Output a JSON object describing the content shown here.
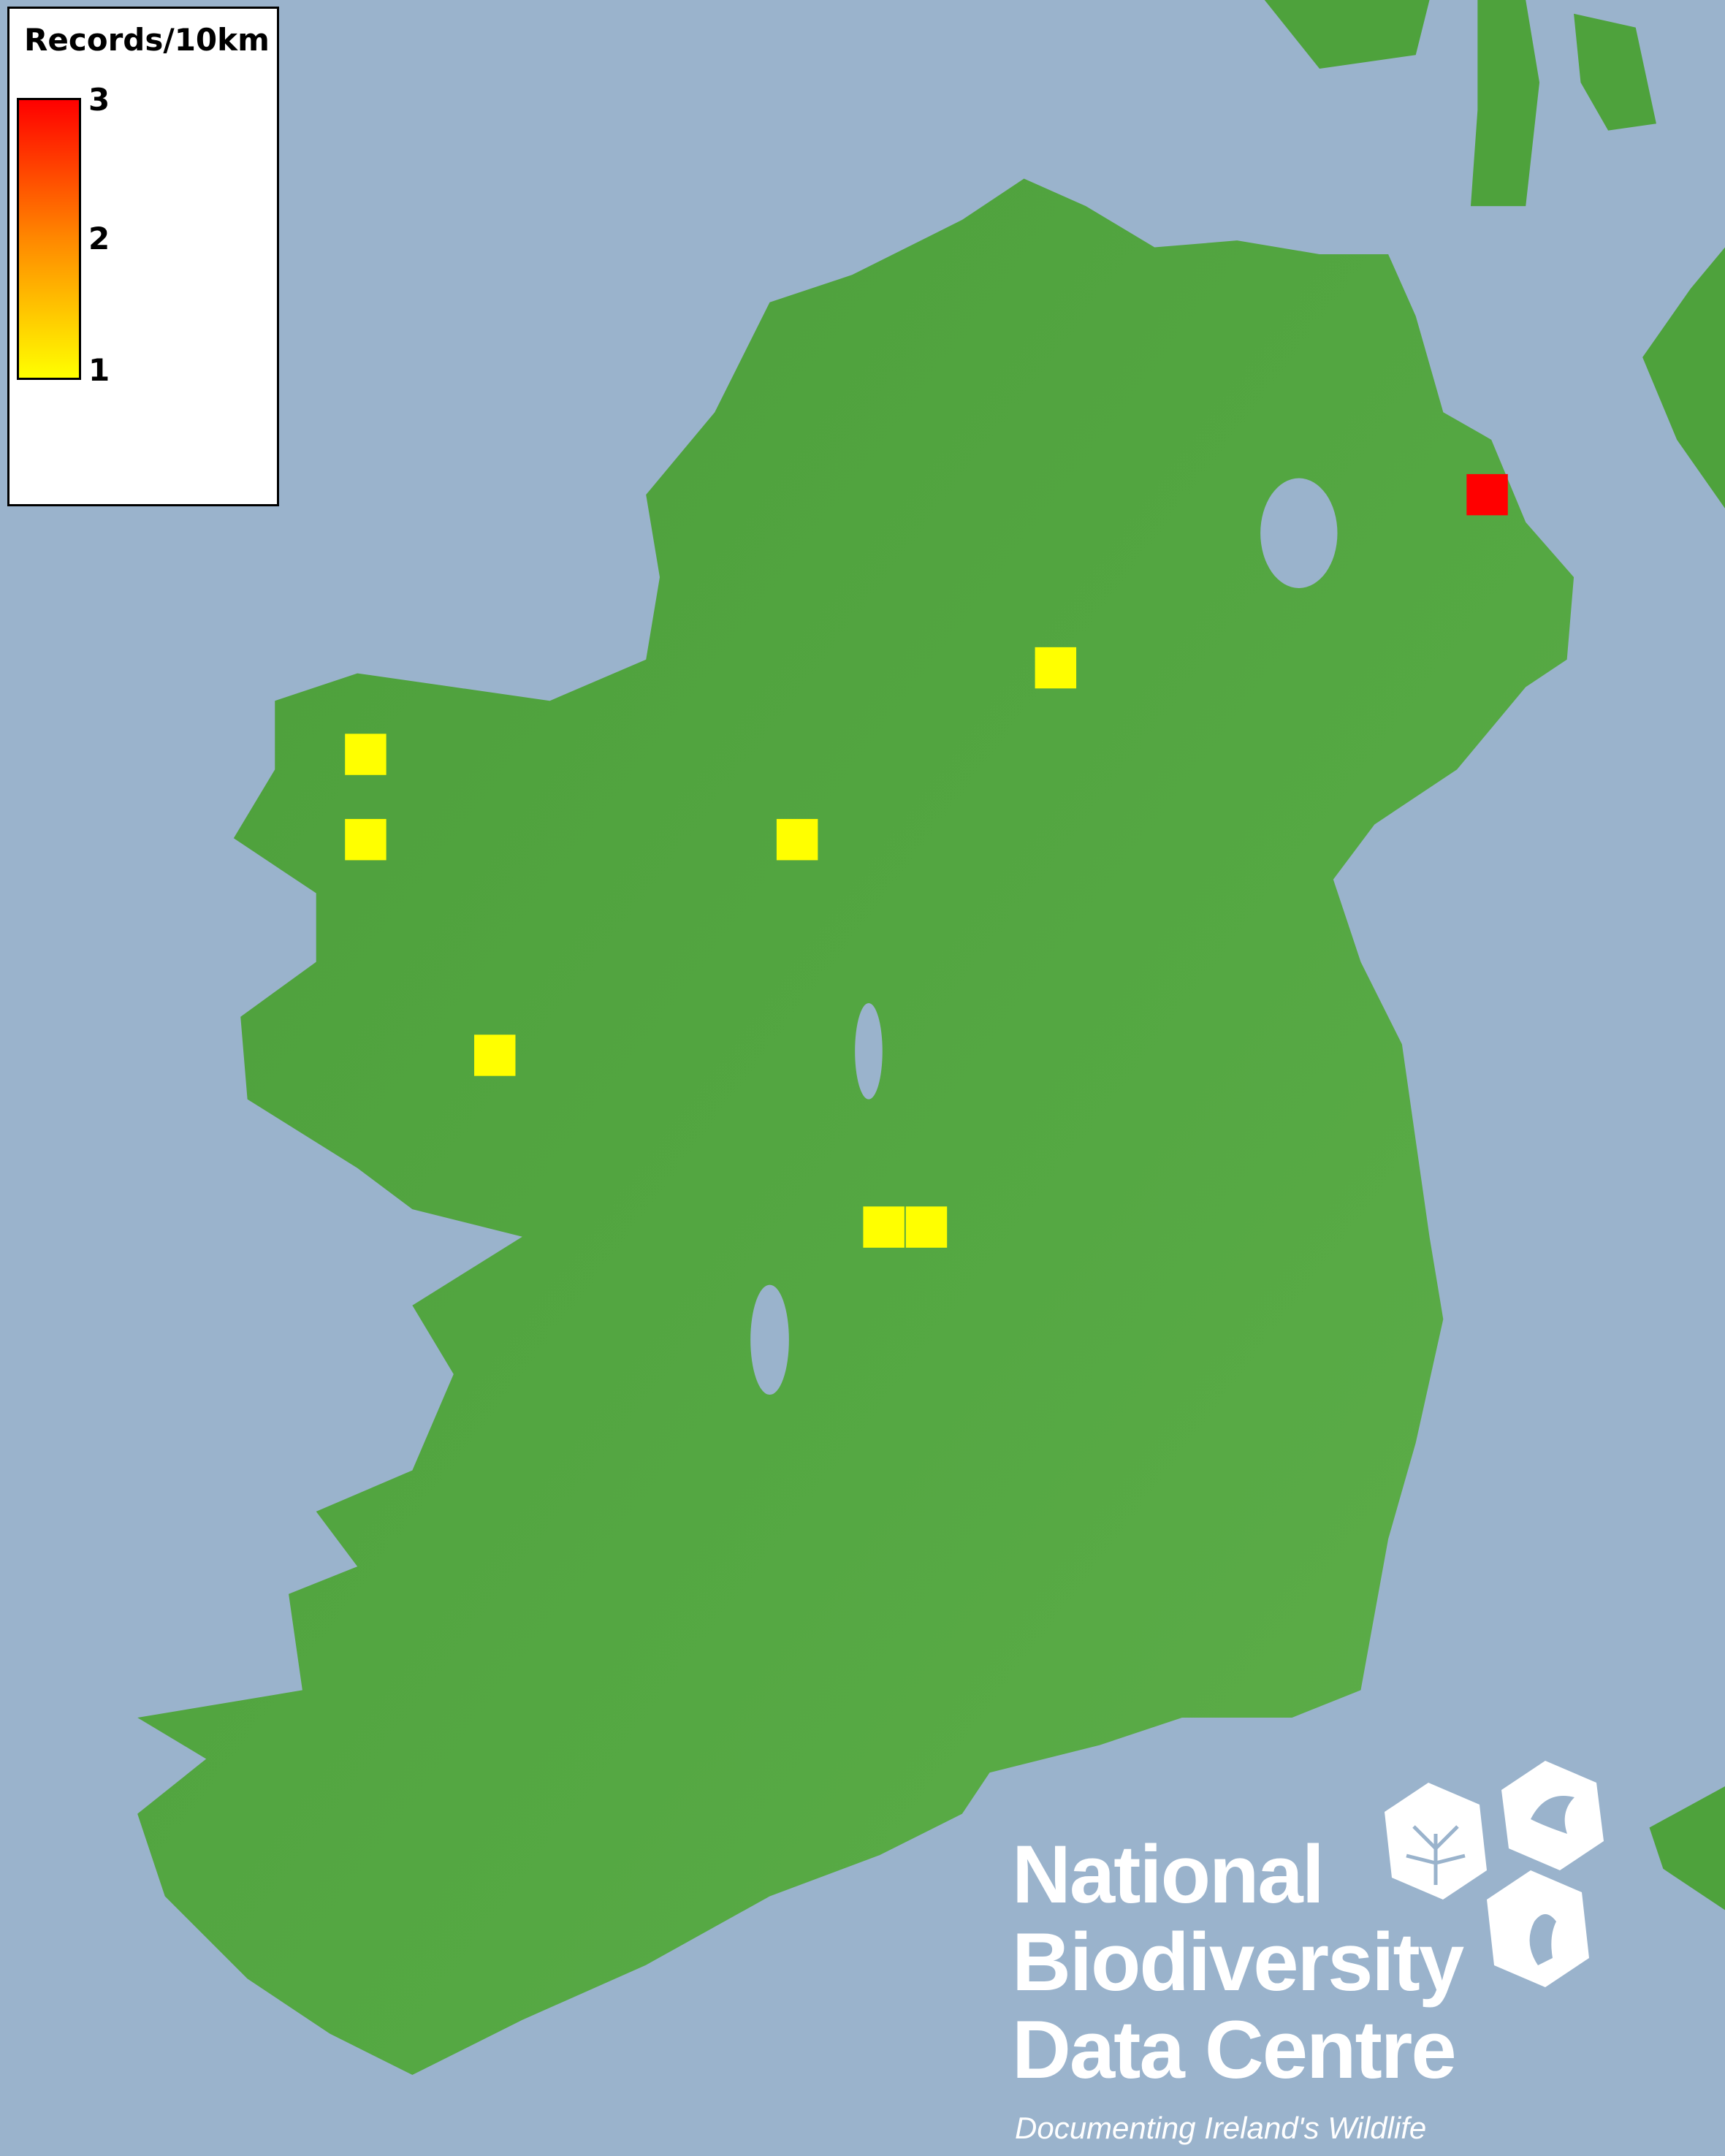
{
  "legend": {
    "title": "Records/10km",
    "scale_max": "3",
    "scale_mid": "2",
    "scale_min": "1",
    "color_low": "#ffff00",
    "color_mid": "#ff8800",
    "color_high": "#ff0000"
  },
  "records": [
    {
      "count": 3,
      "color": "#ff0000"
    },
    {
      "count": 1,
      "color": "#ffff00"
    },
    {
      "count": 1,
      "color": "#ffff00"
    },
    {
      "count": 1,
      "color": "#ffff00"
    },
    {
      "count": 1,
      "color": "#ffff00"
    },
    {
      "count": 1,
      "color": "#ffff00"
    },
    {
      "count": 1,
      "color": "#ffff00"
    },
    {
      "count": 1,
      "color": "#ffff00"
    }
  ],
  "colors": {
    "sea": "#9ab3cc",
    "land": "#4ea23c"
  },
  "logo": {
    "line1": "National",
    "line2": "Biodiversity",
    "line3": "Data Centre",
    "tagline": "Documenting Ireland's Wildlife"
  }
}
